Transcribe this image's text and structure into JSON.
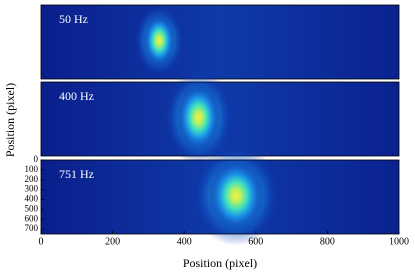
{
  "chart_data": {
    "type": "heatmap",
    "panels": [
      {
        "label": "50 Hz"
      },
      {
        "label": "400 Hz"
      },
      {
        "label": "751 Hz"
      }
    ],
    "xlabel": "Position (pixel)",
    "ylabel": "Position (pixel)",
    "xlim": [
      0,
      1000
    ],
    "xticks": [
      0,
      200,
      400,
      600,
      800,
      1000
    ],
    "ylim": [
      0,
      750
    ],
    "yticks": [
      0,
      100,
      200,
      300,
      400,
      500,
      600,
      700
    ]
  }
}
